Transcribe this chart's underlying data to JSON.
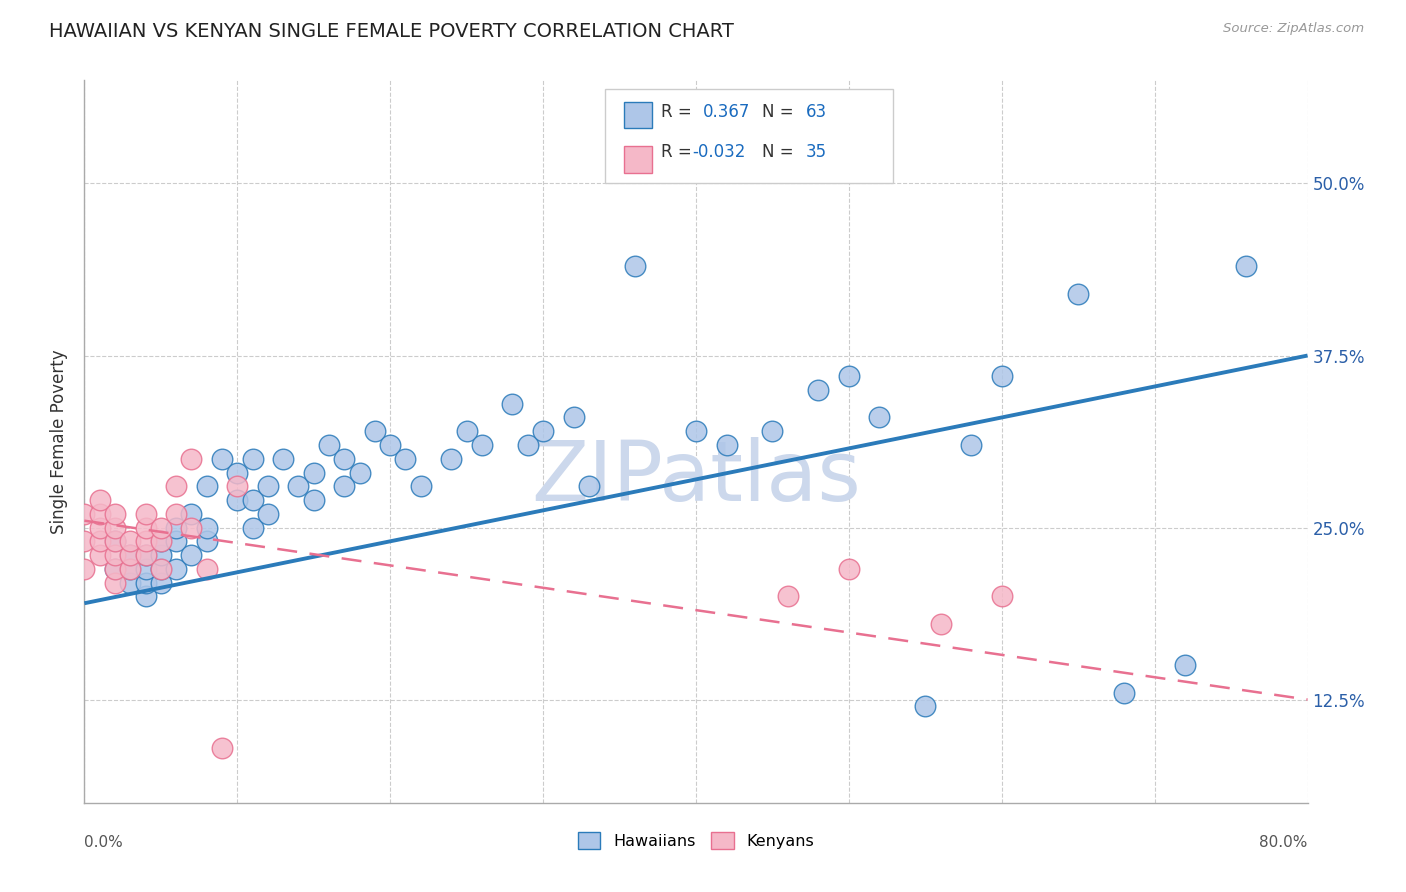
{
  "title": "HAWAIIAN VS KENYAN SINGLE FEMALE POVERTY CORRELATION CHART",
  "source_text": "Source: ZipAtlas.com",
  "ylabel": "Single Female Poverty",
  "xlim": [
    0.0,
    0.8
  ],
  "ylim": [
    0.05,
    0.575
  ],
  "yticks": [
    0.125,
    0.25,
    0.375,
    0.5
  ],
  "ytick_labels": [
    "12.5%",
    "25.0%",
    "37.5%",
    "50.0%"
  ],
  "hawaiian_color": "#aec6e8",
  "kenyan_color": "#f5b8c8",
  "trendline_hawaiian_color": "#2b7bba",
  "trendline_kenyan_color": "#e87090",
  "watermark_text": "ZIPatlas",
  "watermark_color": "#ccd8ec",
  "hawaiians_x": [
    0.02,
    0.02,
    0.03,
    0.03,
    0.03,
    0.04,
    0.04,
    0.04,
    0.04,
    0.05,
    0.05,
    0.05,
    0.05,
    0.06,
    0.06,
    0.06,
    0.07,
    0.07,
    0.08,
    0.08,
    0.08,
    0.09,
    0.1,
    0.1,
    0.11,
    0.11,
    0.11,
    0.12,
    0.12,
    0.13,
    0.14,
    0.15,
    0.15,
    0.16,
    0.17,
    0.17,
    0.18,
    0.19,
    0.2,
    0.21,
    0.22,
    0.24,
    0.25,
    0.26,
    0.28,
    0.29,
    0.3,
    0.32,
    0.33,
    0.36,
    0.4,
    0.42,
    0.45,
    0.48,
    0.5,
    0.52,
    0.55,
    0.58,
    0.6,
    0.65,
    0.68,
    0.72,
    0.76
  ],
  "hawaiians_y": [
    0.22,
    0.24,
    0.21,
    0.22,
    0.23,
    0.2,
    0.21,
    0.22,
    0.23,
    0.21,
    0.22,
    0.23,
    0.24,
    0.22,
    0.24,
    0.25,
    0.23,
    0.26,
    0.24,
    0.25,
    0.28,
    0.3,
    0.27,
    0.29,
    0.25,
    0.27,
    0.3,
    0.26,
    0.28,
    0.3,
    0.28,
    0.27,
    0.29,
    0.31,
    0.28,
    0.3,
    0.29,
    0.32,
    0.31,
    0.3,
    0.28,
    0.3,
    0.32,
    0.31,
    0.34,
    0.31,
    0.32,
    0.33,
    0.28,
    0.44,
    0.32,
    0.31,
    0.32,
    0.35,
    0.36,
    0.33,
    0.12,
    0.31,
    0.36,
    0.42,
    0.13,
    0.15,
    0.44
  ],
  "kenyans_x": [
    0.0,
    0.0,
    0.0,
    0.01,
    0.01,
    0.01,
    0.01,
    0.01,
    0.02,
    0.02,
    0.02,
    0.02,
    0.02,
    0.02,
    0.03,
    0.03,
    0.03,
    0.04,
    0.04,
    0.04,
    0.04,
    0.05,
    0.05,
    0.05,
    0.06,
    0.06,
    0.07,
    0.07,
    0.08,
    0.09,
    0.1,
    0.46,
    0.5,
    0.56,
    0.6
  ],
  "kenyans_y": [
    0.22,
    0.24,
    0.26,
    0.23,
    0.24,
    0.25,
    0.26,
    0.27,
    0.21,
    0.22,
    0.23,
    0.24,
    0.25,
    0.26,
    0.22,
    0.23,
    0.24,
    0.23,
    0.24,
    0.25,
    0.26,
    0.22,
    0.24,
    0.25,
    0.26,
    0.28,
    0.25,
    0.3,
    0.22,
    0.09,
    0.28,
    0.2,
    0.22,
    0.18,
    0.2
  ],
  "trend_h_x0": 0.0,
  "trend_h_x1": 0.8,
  "trend_h_y0": 0.195,
  "trend_h_y1": 0.375,
  "trend_k_x0": 0.0,
  "trend_k_x1": 0.8,
  "trend_k_y0": 0.255,
  "trend_k_y1": 0.125
}
